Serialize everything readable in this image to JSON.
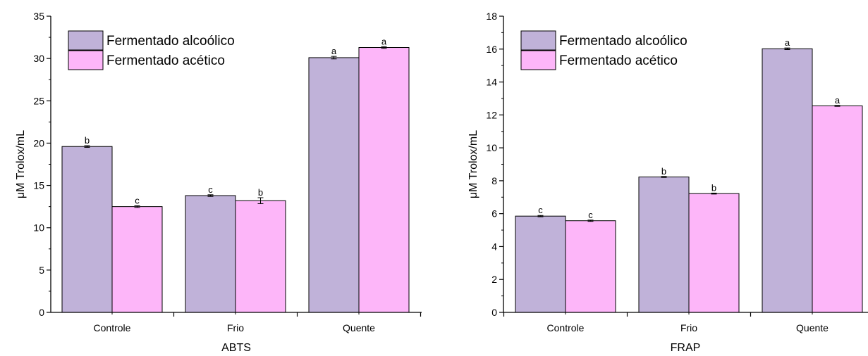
{
  "chart_data": [
    {
      "type": "bar",
      "title": "",
      "xlabel": "ABTS",
      "ylabel": "μM Trolox/mL",
      "ylim": [
        0,
        35
      ],
      "yticks": [
        0,
        5,
        10,
        15,
        20,
        25,
        30,
        35
      ],
      "categories": [
        "Controle",
        "Frio",
        "Quente"
      ],
      "legend_position": "top-left",
      "series": [
        {
          "name": "Fermentado alcoólico",
          "color": "#C0B2D9",
          "values": [
            19.6,
            13.8,
            30.1
          ],
          "errors": [
            0.1,
            0.1,
            0.15
          ],
          "labels": [
            "b",
            "c",
            "a"
          ]
        },
        {
          "name": "Fermentado acético",
          "color": "#FDB6F9",
          "values": [
            12.5,
            13.2,
            31.3
          ],
          "errors": [
            0.1,
            0.35,
            0.1
          ],
          "labels": [
            "c",
            "b",
            "a"
          ]
        }
      ]
    },
    {
      "type": "bar",
      "title": "",
      "xlabel": "FRAP",
      "ylabel": "μM Trolox/mL",
      "ylim": [
        0,
        18
      ],
      "yticks": [
        0,
        2,
        4,
        6,
        8,
        10,
        12,
        14,
        16,
        18
      ],
      "categories": [
        "Controle",
        "Frio",
        "Quente"
      ],
      "legend_position": "top-left",
      "series": [
        {
          "name": "Fermentado alcoólico",
          "color": "#C0B2D9",
          "values": [
            5.85,
            8.23,
            16.02
          ],
          "errors": [
            0.04,
            0.03,
            0.05
          ],
          "labels": [
            "c",
            "b",
            "a"
          ]
        },
        {
          "name": "Fermentado acético",
          "color": "#FDB6F9",
          "values": [
            5.57,
            7.22,
            12.55
          ],
          "errors": [
            0.04,
            0.03,
            0.03
          ],
          "labels": [
            "c",
            "b",
            "a"
          ]
        }
      ]
    }
  ]
}
